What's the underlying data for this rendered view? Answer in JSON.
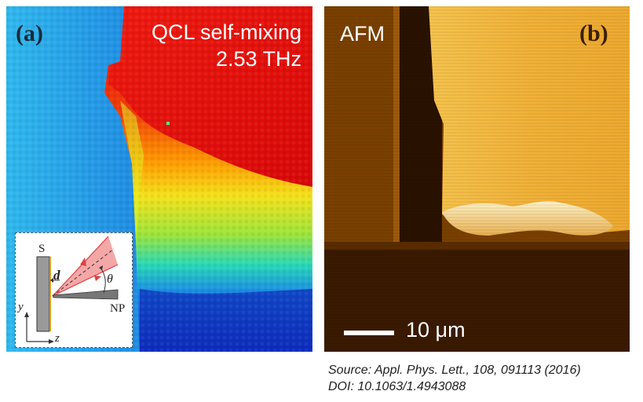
{
  "panel_a": {
    "label": "(a)",
    "title_line1": "QCL self-mixing",
    "title_line2": "2.53 THz"
  },
  "inset": {
    "sample_label": "S",
    "distance_label": "d",
    "angle_label": "θ",
    "nanoprobe_label": "NP",
    "axis_y": "y",
    "axis_z": "z"
  },
  "panel_b": {
    "label": "(b)",
    "mode_label": "AFM",
    "scale_label": "10 μm"
  },
  "source": {
    "line1": "Source: Appl. Phys. Lett., 108, 091113 (2016)",
    "line2": "DOI: 10.1063/1.4943088"
  }
}
